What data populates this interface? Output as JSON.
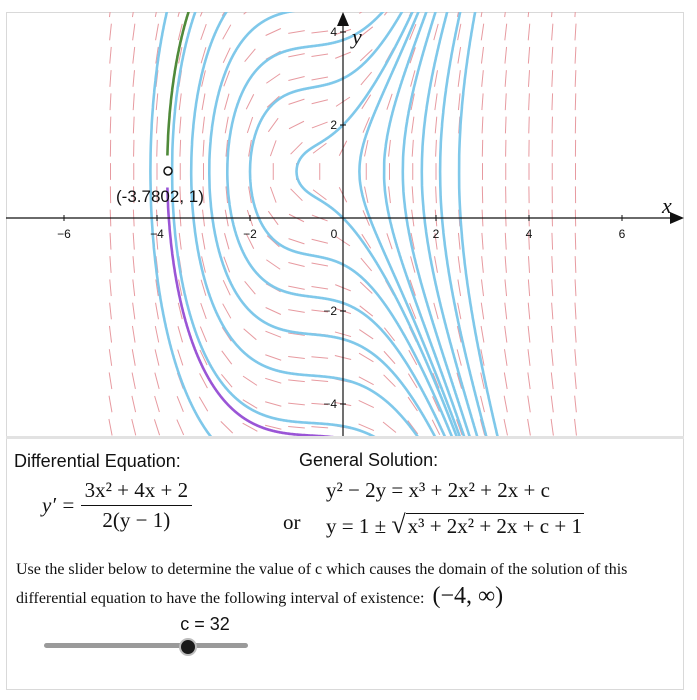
{
  "graph": {
    "x_axis_label": "x",
    "y_axis_label": "y",
    "x_ticks": [
      "−6",
      "−4",
      "−2",
      "0",
      "2",
      "4",
      "6"
    ],
    "y_ticks": [
      "4",
      "2",
      "−2",
      "−4"
    ],
    "point_label": "(-3.7802, 1)",
    "colors": {
      "solution_curves": "#7fc8ea",
      "slope_field": "#e79aa0",
      "upper_branch": "#4f8a3a",
      "lower_branch": "#9a55d6",
      "axes": "#111111"
    }
  },
  "differential_equation": {
    "heading": "Differential Equation:",
    "lhs": "y′ =",
    "numerator": "3x² + 4x + 2",
    "denominator": "2(y − 1)"
  },
  "general_solution": {
    "heading": "General Solution:",
    "line1": "y² − 2y = x³ + 2x² + 2x + c",
    "or_word": "or",
    "line2_prefix": "y = 1 ±",
    "line2_radicand": "x³ + 2x² + 2x + c + 1"
  },
  "instruction": {
    "text": "Use the slider below to determine the value of c which causes the domain of the solution of this differential equation to have the following interval of existence:",
    "interval": "(−4, ∞)"
  },
  "slider": {
    "label": "c = 32",
    "value": 32
  }
}
